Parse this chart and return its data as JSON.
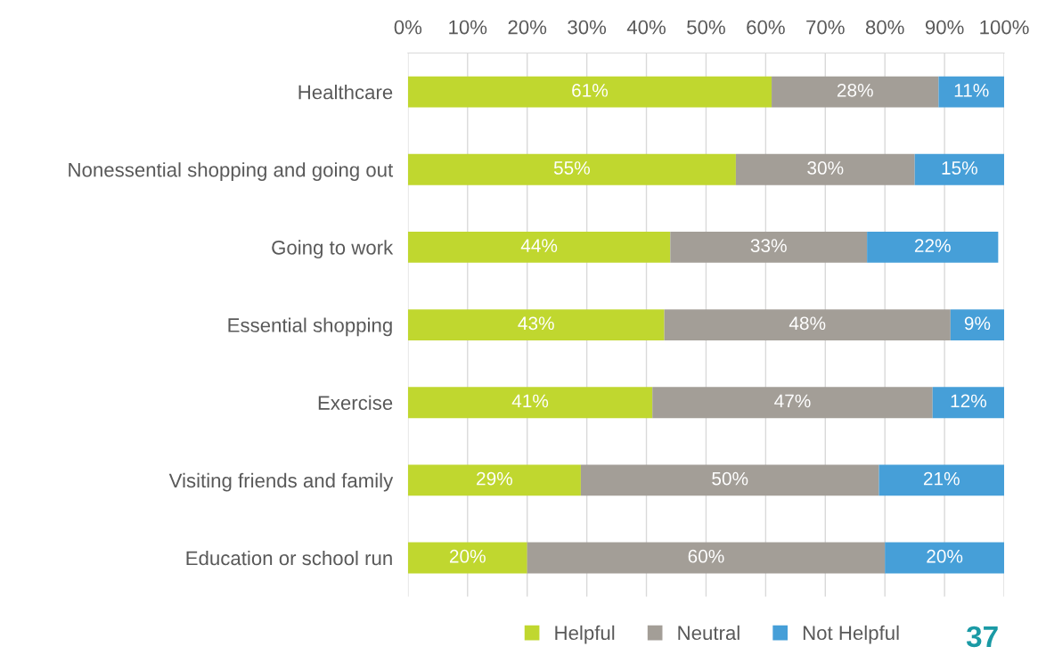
{
  "chart_data": {
    "type": "bar",
    "orientation": "horizontal",
    "stacked": true,
    "categories": [
      "Healthcare",
      "Nonessential shopping and going out",
      "Going to work",
      "Essential shopping",
      "Exercise",
      "Visiting friends and family",
      "Education or school run"
    ],
    "series": [
      {
        "name": "Helpful",
        "color": "#c0d72f",
        "values": [
          61,
          55,
          44,
          43,
          41,
          29,
          20
        ]
      },
      {
        "name": "Neutral",
        "color": "#a39e97",
        "values": [
          28,
          30,
          33,
          48,
          47,
          50,
          60
        ]
      },
      {
        "name": "Not Helpful",
        "color": "#469fd8",
        "values": [
          11,
          15,
          22,
          9,
          12,
          21,
          20
        ]
      }
    ],
    "xlim": [
      0,
      100
    ],
    "xticks": [
      {
        "value": 0,
        "label": "0%"
      },
      {
        "value": 10,
        "label": "10%"
      },
      {
        "value": 20,
        "label": "20%"
      },
      {
        "value": 30,
        "label": "30%"
      },
      {
        "value": 40,
        "label": "40%"
      },
      {
        "value": 50,
        "label": "50%"
      },
      {
        "value": 60,
        "label": "60%"
      },
      {
        "value": 70,
        "label": "70%"
      },
      {
        "value": 80,
        "label": "80%"
      },
      {
        "value": 90,
        "label": "90%"
      },
      {
        "value": 100,
        "label": "100%"
      }
    ],
    "value_labels": [
      [
        "61%",
        "55%",
        "44%",
        "43%",
        "41%",
        "29%",
        "20%"
      ],
      [
        "28%",
        "30%",
        "33%",
        "48%",
        "47%",
        "50%",
        "60%"
      ],
      [
        "11%",
        "15%",
        "22%",
        "9%",
        "12%",
        "21%",
        "20%"
      ]
    ],
    "grid": "x",
    "legend": "bottom",
    "marker": "square",
    "annotations": [
      "37"
    ]
  }
}
